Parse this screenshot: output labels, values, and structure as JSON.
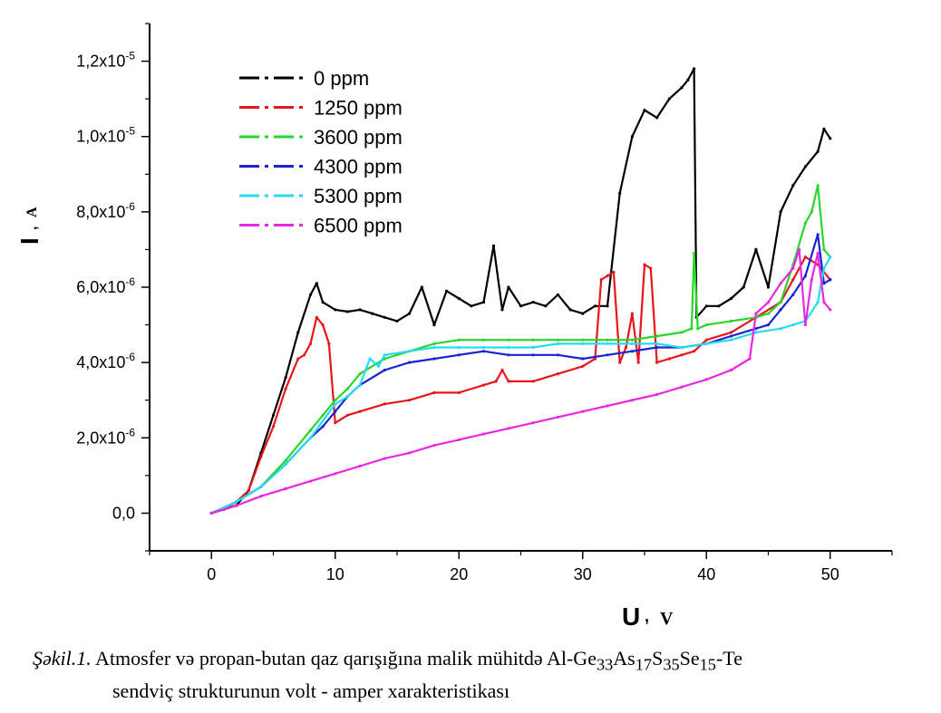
{
  "chart_data": {
    "type": "line",
    "xlabel": "U",
    "xlabel_unit": "V",
    "ylabel": "I",
    "ylabel_unit": "A",
    "xlim": [
      -5,
      55
    ],
    "ylim": [
      -1e-06,
      1.3e-05
    ],
    "xticks": [
      0,
      10,
      20,
      30,
      40,
      50
    ],
    "xtick_labels": [
      "0",
      "10",
      "20",
      "30",
      "40",
      "50"
    ],
    "yticks": [
      0,
      2e-06,
      4e-06,
      6e-06,
      8e-06,
      1e-05,
      1.2e-05
    ],
    "ytick_labels": [
      {
        "mant": "0,0",
        "exp": ""
      },
      {
        "mant": "2,0x10",
        "exp": "-6"
      },
      {
        "mant": "4,0x10",
        "exp": "-6"
      },
      {
        "mant": "6,0x10",
        "exp": "-6"
      },
      {
        "mant": "8,0x10",
        "exp": "-6"
      },
      {
        "mant": "1,0x10",
        "exp": "-5"
      },
      {
        "mant": "1,2x10",
        "exp": "-5"
      }
    ],
    "grid": false,
    "legend_position": "top-left",
    "series": [
      {
        "name": "0 ppm",
        "color": "#000000",
        "x": [
          0,
          1,
          2,
          3,
          4,
          5,
          6,
          7,
          8,
          8.5,
          9,
          10,
          11,
          12,
          13,
          14,
          15,
          16,
          17,
          18,
          19,
          20,
          21,
          22,
          22.8,
          23.5,
          24,
          25,
          26,
          27,
          28,
          29,
          30,
          31,
          32,
          33,
          34,
          35,
          36,
          37,
          38,
          38.5,
          39,
          39.2,
          40,
          41,
          42,
          43,
          44,
          45,
          46,
          47,
          48,
          49,
          49.5,
          50
        ],
        "y": [
          0,
          1e-07,
          2e-07,
          6e-07,
          1.6e-06,
          2.6e-06,
          3.6e-06,
          4.8e-06,
          5.8e-06,
          6.1e-06,
          5.6e-06,
          5.4e-06,
          5.35e-06,
          5.4e-06,
          5.3e-06,
          5.2e-06,
          5.1e-06,
          5.3e-06,
          6e-06,
          5e-06,
          5.9e-06,
          5.7e-06,
          5.5e-06,
          5.6e-06,
          7.1e-06,
          5.4e-06,
          6e-06,
          5.5e-06,
          5.6e-06,
          5.5e-06,
          5.8e-06,
          5.4e-06,
          5.3e-06,
          5.5e-06,
          5.5e-06,
          8.5e-06,
          1e-05,
          1.07e-05,
          1.05e-05,
          1.1e-05,
          1.13e-05,
          1.15e-05,
          1.18e-05,
          5.2e-06,
          5.5e-06,
          5.5e-06,
          5.7e-06,
          6e-06,
          7e-06,
          6e-06,
          8e-06,
          8.7e-06,
          9.2e-06,
          9.6e-06,
          1.02e-05,
          9.95e-06
        ]
      },
      {
        "name": "1250 ppm",
        "color": "#e8161b",
        "x": [
          0,
          1,
          2,
          3,
          4,
          5,
          6,
          7,
          7.5,
          8,
          8.5,
          9,
          9.5,
          10,
          11,
          12,
          14,
          16,
          18,
          20,
          22,
          23,
          23.5,
          24,
          26,
          28,
          30,
          31,
          31.5,
          32,
          32.5,
          33,
          33.5,
          34,
          34.5,
          35,
          35.5,
          36,
          37,
          38,
          39,
          40,
          42,
          44,
          46,
          47,
          48,
          49,
          50
        ],
        "y": [
          0,
          1e-07,
          3e-07,
          6e-07,
          1.5e-06,
          2.3e-06,
          3.3e-06,
          4.1e-06,
          4.2e-06,
          4.5e-06,
          5.2e-06,
          5e-06,
          4.5e-06,
          2.4e-06,
          2.6e-06,
          2.7e-06,
          2.9e-06,
          3e-06,
          3.2e-06,
          3.2e-06,
          3.4e-06,
          3.5e-06,
          3.8e-06,
          3.5e-06,
          3.5e-06,
          3.7e-06,
          3.9e-06,
          4.1e-06,
          6.2e-06,
          6.3e-06,
          6.4e-06,
          4e-06,
          4.4e-06,
          5.3e-06,
          4e-06,
          6.6e-06,
          6.5e-06,
          4e-06,
          4.1e-06,
          4.2e-06,
          4.3e-06,
          4.6e-06,
          4.8e-06,
          5.2e-06,
          5.6e-06,
          6.2e-06,
          6.8e-06,
          6.6e-06,
          6.2e-06
        ]
      },
      {
        "name": "3600 ppm",
        "color": "#29d62a",
        "x": [
          0,
          2,
          4,
          6,
          8,
          9,
          10,
          11,
          12,
          14,
          16,
          18,
          20,
          22,
          24,
          26,
          28,
          30,
          32,
          34,
          36,
          38,
          38.8,
          39,
          39.3,
          40,
          42,
          44,
          45,
          46,
          47,
          48,
          48.5,
          49,
          49.5,
          50
        ],
        "y": [
          0,
          3e-07,
          7e-07,
          1.4e-06,
          2.2e-06,
          2.6e-06,
          3e-06,
          3.3e-06,
          3.7e-06,
          4.1e-06,
          4.3e-06,
          4.5e-06,
          4.6e-06,
          4.6e-06,
          4.6e-06,
          4.6e-06,
          4.6e-06,
          4.6e-06,
          4.6e-06,
          4.6e-06,
          4.7e-06,
          4.8e-06,
          4.9e-06,
          6.9e-06,
          4.9e-06,
          5e-06,
          5.1e-06,
          5.2e-06,
          5.3e-06,
          5.6e-06,
          6.6e-06,
          7.7e-06,
          8e-06,
          8.7e-06,
          7e-06,
          6.8e-06
        ]
      },
      {
        "name": "4300 ppm",
        "color": "#1a22d6",
        "x": [
          0,
          2,
          4,
          6,
          8,
          9,
          10,
          11,
          12,
          14,
          16,
          18,
          20,
          22,
          24,
          26,
          28,
          30,
          32,
          34,
          36,
          38,
          40,
          42,
          44,
          45,
          46,
          47,
          48,
          49,
          49.5,
          50
        ],
        "y": [
          0,
          3e-07,
          7e-07,
          1.3e-06,
          2e-06,
          2.3e-06,
          2.7e-06,
          3.1e-06,
          3.4e-06,
          3.8e-06,
          4e-06,
          4.1e-06,
          4.2e-06,
          4.3e-06,
          4.2e-06,
          4.2e-06,
          4.2e-06,
          4.1e-06,
          4.2e-06,
          4.3e-06,
          4.4e-06,
          4.4e-06,
          4.5e-06,
          4.7e-06,
          4.9e-06,
          5e-06,
          5.4e-06,
          5.8e-06,
          6.3e-06,
          7.4e-06,
          6.1e-06,
          6.2e-06
        ]
      },
      {
        "name": "5300 ppm",
        "color": "#25dcf0",
        "x": [
          0,
          2,
          4,
          6,
          8,
          10,
          11,
          12,
          12.8,
          13.5,
          14,
          16,
          18,
          20,
          22,
          24,
          26,
          28,
          30,
          32,
          34,
          36,
          38,
          40,
          42,
          44,
          46,
          47,
          48,
          49,
          49.5,
          50
        ],
        "y": [
          0,
          3e-07,
          7e-07,
          1.3e-06,
          2e-06,
          2.9e-06,
          3.1e-06,
          3.4e-06,
          4.1e-06,
          3.9e-06,
          4.2e-06,
          4.3e-06,
          4.4e-06,
          4.4e-06,
          4.4e-06,
          4.4e-06,
          4.4e-06,
          4.5e-06,
          4.5e-06,
          4.5e-06,
          4.5e-06,
          4.5e-06,
          4.4e-06,
          4.5e-06,
          4.6e-06,
          4.8e-06,
          4.9e-06,
          5e-06,
          5.1e-06,
          5.6e-06,
          6.5e-06,
          6.8e-06
        ]
      },
      {
        "name": "6500 ppm",
        "color": "#e828e0",
        "x": [
          0,
          2,
          4,
          6,
          8,
          10,
          12,
          14,
          16,
          18,
          20,
          22,
          24,
          26,
          28,
          30,
          32,
          34,
          36,
          38,
          40,
          42,
          43.5,
          44,
          45,
          46,
          47,
          47.5,
          48,
          48.5,
          49,
          49.5,
          50
        ],
        "y": [
          0,
          2e-07,
          4.5e-07,
          6.5e-07,
          8.5e-07,
          1.05e-06,
          1.25e-06,
          1.45e-06,
          1.6e-06,
          1.8e-06,
          1.95e-06,
          2.1e-06,
          2.25e-06,
          2.4e-06,
          2.55e-06,
          2.7e-06,
          2.85e-06,
          3e-06,
          3.15e-06,
          3.35e-06,
          3.55e-06,
          3.8e-06,
          4.1e-06,
          5.3e-06,
          5.6e-06,
          6.1e-06,
          6.5e-06,
          7e-06,
          5e-06,
          6.2e-06,
          6.9e-06,
          5.6e-06,
          5.4e-06
        ]
      }
    ]
  },
  "caption": {
    "label": "Şəkil.1.",
    "line1_text": " Atmosfer və propan-butan qaz qarışığına malik mühitdə Al-Ge",
    "sub1": "33",
    "mid1": "As",
    "sub2": "17",
    "mid2": "S",
    "sub3": "35",
    "mid3": "Se",
    "sub4": "15",
    "end": "-Te",
    "line2": "sendviç strukturunun volt - amper xarakteristikası"
  }
}
